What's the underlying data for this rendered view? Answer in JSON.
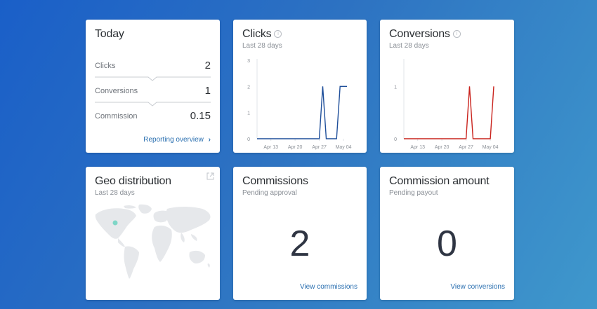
{
  "today": {
    "title": "Today",
    "rows": [
      {
        "label": "Clicks",
        "value": "2"
      },
      {
        "label": "Conversions",
        "value": "1"
      },
      {
        "label": "Commission",
        "value": "0.15"
      }
    ],
    "link": "Reporting overview"
  },
  "clicks": {
    "title": "Clicks",
    "subtitle": "Last 28 days",
    "color": "#1f4f9a"
  },
  "conversions": {
    "title": "Conversions",
    "subtitle": "Last 28 days",
    "color": "#c9231d"
  },
  "geo": {
    "title": "Geo distribution",
    "subtitle": "Last 28 days"
  },
  "commissions": {
    "title": "Commissions",
    "subtitle": "Pending approval",
    "value": "2",
    "link": "View commissions"
  },
  "commission_amount": {
    "title": "Commission amount",
    "subtitle": "Pending payout",
    "value": "0",
    "link": "View conversions"
  },
  "chart_data": [
    {
      "type": "line",
      "title": "Clicks",
      "x": [
        "Apr 9",
        "Apr 10",
        "Apr 11",
        "Apr 12",
        "Apr 13",
        "Apr 14",
        "Apr 15",
        "Apr 16",
        "Apr 17",
        "Apr 18",
        "Apr 19",
        "Apr 20",
        "Apr 21",
        "Apr 22",
        "Apr 23",
        "Apr 24",
        "Apr 25",
        "Apr 26",
        "Apr 27",
        "Apr 28",
        "Apr 29",
        "Apr 30",
        "May 01",
        "May 02",
        "May 03",
        "May 04",
        "May 05"
      ],
      "values": [
        0,
        0,
        0,
        0,
        0,
        0,
        0,
        0,
        0,
        0,
        0,
        0,
        0,
        0,
        0,
        0,
        0,
        0,
        0,
        2,
        0,
        0,
        0,
        0,
        2,
        2,
        2
      ],
      "xticks": [
        "Apr 13",
        "Apr 20",
        "Apr 27",
        "May 04"
      ],
      "yticks": [
        0,
        1,
        2,
        3
      ],
      "ylim": [
        0,
        3
      ]
    },
    {
      "type": "line",
      "title": "Conversions",
      "x": [
        "Apr 9",
        "Apr 10",
        "Apr 11",
        "Apr 12",
        "Apr 13",
        "Apr 14",
        "Apr 15",
        "Apr 16",
        "Apr 17",
        "Apr 18",
        "Apr 19",
        "Apr 20",
        "Apr 21",
        "Apr 22",
        "Apr 23",
        "Apr 24",
        "Apr 25",
        "Apr 26",
        "Apr 27",
        "Apr 28",
        "Apr 29",
        "Apr 30",
        "May 01",
        "May 02",
        "May 03",
        "May 04",
        "May 05"
      ],
      "values": [
        0,
        0,
        0,
        0,
        0,
        0,
        0,
        0,
        0,
        0,
        0,
        0,
        0,
        0,
        0,
        0,
        0,
        0,
        0,
        1,
        0,
        0,
        0,
        0,
        0,
        0,
        1
      ],
      "xticks": [
        "Apr 13",
        "Apr 20",
        "Apr 27",
        "May 04"
      ],
      "yticks": [
        0,
        1
      ],
      "ylim": [
        0,
        1.5
      ]
    }
  ]
}
